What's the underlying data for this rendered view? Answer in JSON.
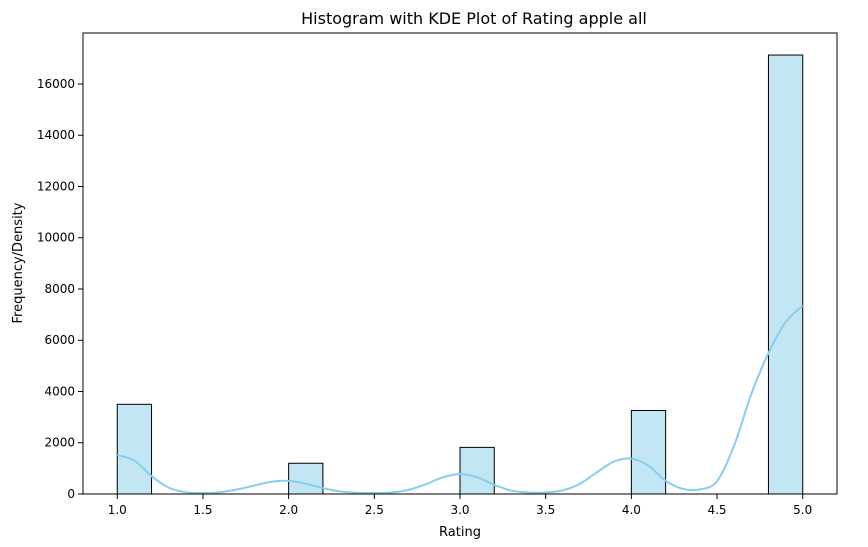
{
  "chart_data": {
    "type": "bar",
    "title": "Histogram with KDE Plot of Rating apple all",
    "xlabel": "Rating",
    "ylabel": "Frequency/Density",
    "xlim": [
      0.8,
      5.2
    ],
    "ylim": [
      0,
      17990
    ],
    "xticks": [
      1.0,
      1.5,
      2.0,
      2.5,
      3.0,
      3.5,
      4.0,
      4.5,
      5.0
    ],
    "xtick_labels": [
      "1.0",
      "1.5",
      "2.0",
      "2.5",
      "3.0",
      "3.5",
      "4.0",
      "4.5",
      "5.0"
    ],
    "yticks": [
      0,
      2000,
      4000,
      6000,
      8000,
      10000,
      12000,
      14000,
      16000
    ],
    "ytick_labels": [
      "0",
      "2000",
      "4000",
      "6000",
      "8000",
      "10000",
      "12000",
      "14000",
      "16000"
    ],
    "grid": false,
    "legend": "none",
    "bar_color": "#87CEEB",
    "bar_edge_color": "#000000",
    "kde_color": "#87CEEB",
    "bins": [
      {
        "x0": 1.0,
        "x1": 1.2,
        "value": 3500
      },
      {
        "x0": 2.0,
        "x1": 2.2,
        "value": 1200
      },
      {
        "x0": 3.0,
        "x1": 3.2,
        "value": 1820
      },
      {
        "x0": 4.0,
        "x1": 4.2,
        "value": 3260
      },
      {
        "x0": 4.8,
        "x1": 5.0,
        "value": 17130
      }
    ],
    "kde": {
      "x": [
        1.0,
        1.1,
        1.2,
        1.3,
        1.4,
        1.5,
        1.6,
        1.7,
        1.8,
        1.9,
        2.0,
        2.1,
        2.2,
        2.3,
        2.4,
        2.5,
        2.6,
        2.7,
        2.8,
        2.9,
        3.0,
        3.1,
        3.2,
        3.3,
        3.4,
        3.5,
        3.6,
        3.7,
        3.8,
        3.9,
        4.0,
        4.1,
        4.2,
        4.3,
        4.4,
        4.5,
        4.6,
        4.7,
        4.8,
        4.9,
        5.0
      ],
      "y": [
        1520,
        1300,
        700,
        250,
        70,
        40,
        70,
        180,
        330,
        480,
        510,
        400,
        230,
        100,
        50,
        40,
        60,
        160,
        380,
        650,
        780,
        650,
        360,
        130,
        60,
        60,
        140,
        400,
        850,
        1270,
        1380,
        1100,
        520,
        200,
        180,
        500,
        1900,
        3900,
        5500,
        6700,
        7350
      ]
    }
  }
}
